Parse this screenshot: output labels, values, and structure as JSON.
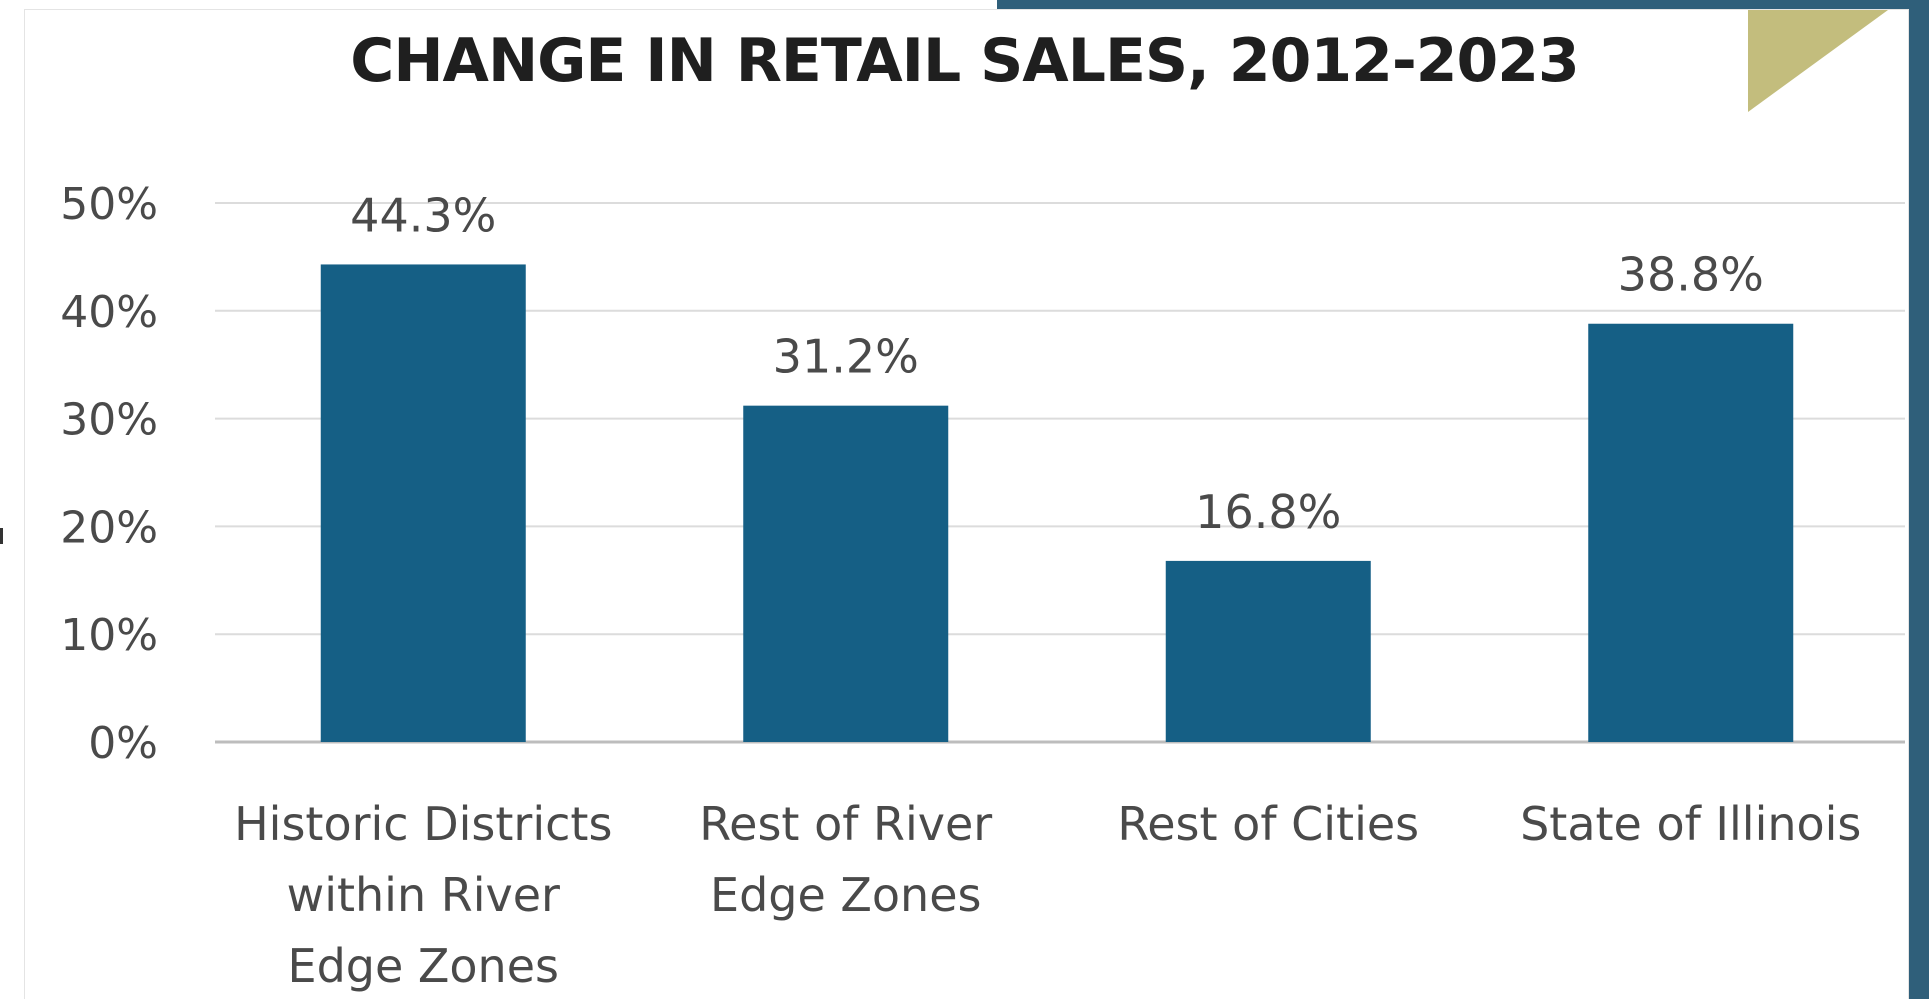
{
  "colors": {
    "bar": "#155f85",
    "band": "#2f5f7a",
    "accent_triangle": "#c3bd7d",
    "grid": "#dcdcdc",
    "axis": "#bdbdbd",
    "text": "#4a4a4a",
    "title": "#1f1f1f"
  },
  "chart_data": {
    "type": "bar",
    "title": "CHANGE IN RETAIL SALES, 2012-2023",
    "xlabel": "",
    "ylabel": "",
    "ylim": [
      0,
      50
    ],
    "yticks": [
      0,
      10,
      20,
      30,
      40,
      50
    ],
    "ytick_labels": [
      "0%",
      "10%",
      "20%",
      "30%",
      "40%",
      "50%"
    ],
    "grid": true,
    "legend": "none",
    "categories": [
      [
        "Historic Districts",
        "within River",
        "Edge Zones"
      ],
      [
        "Rest of River",
        "Edge Zones"
      ],
      [
        "Rest of Cities"
      ],
      [
        "State of Illinois"
      ]
    ],
    "values": [
      44.3,
      31.2,
      16.8,
      38.8
    ],
    "data_labels": [
      "44.3%",
      "31.2%",
      "16.8%",
      "38.8%"
    ]
  }
}
